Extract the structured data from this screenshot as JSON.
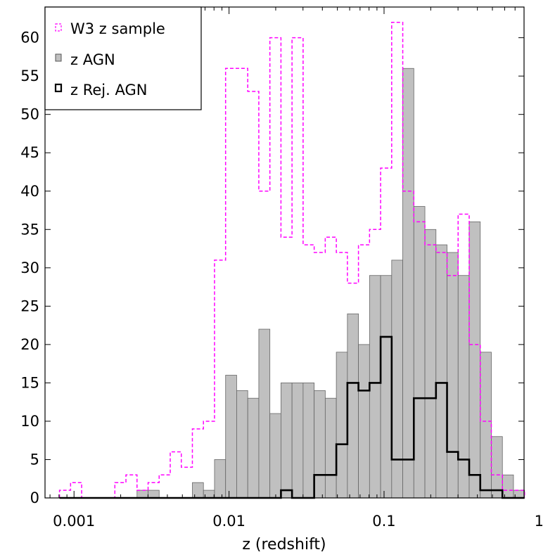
{
  "chart_data": {
    "type": "bar",
    "xlabel": "z (redshift)",
    "ylabel": "",
    "x_scale": "log",
    "xlim": [
      0.00065,
      0.8
    ],
    "ylim": [
      0,
      64
    ],
    "bins_per_decade": 14,
    "first_bin_left": 0.000806,
    "x_ticks": [
      {
        "value": 0.001,
        "label": "0.001"
      },
      {
        "value": 0.01,
        "label": "0.01"
      },
      {
        "value": 0.1,
        "label": "0.1"
      },
      {
        "value": 1,
        "label": "1"
      }
    ],
    "y_ticks": [
      0,
      5,
      10,
      15,
      20,
      25,
      30,
      35,
      40,
      45,
      50,
      55,
      60
    ],
    "legend": {
      "position": "top-left",
      "entries": [
        "W3 z sample",
        "z AGN",
        "z Rej. AGN"
      ]
    },
    "series": [
      {
        "name": "W3 z sample",
        "style": "dashed-step",
        "color": "#ff00ff",
        "values": [
          1,
          2,
          0,
          0,
          0,
          2,
          3,
          1,
          2,
          3,
          6,
          4,
          9,
          10,
          31,
          56,
          56,
          53,
          40,
          60,
          34,
          60,
          33,
          32,
          34,
          32,
          28,
          33,
          35,
          43,
          62,
          40,
          36,
          33,
          32,
          29,
          37,
          20,
          10,
          3,
          1,
          1
        ]
      },
      {
        "name": "z AGN",
        "style": "filled-bar",
        "color": "#c0c0c0",
        "values": [
          0,
          0,
          0,
          0,
          0,
          0,
          0,
          1,
          1,
          0,
          0,
          0,
          2,
          1,
          5,
          16,
          14,
          13,
          22,
          11,
          15,
          15,
          15,
          14,
          13,
          19,
          24,
          20,
          29,
          29,
          31,
          56,
          38,
          35,
          33,
          32,
          29,
          36,
          19,
          8,
          3,
          1
        ]
      },
      {
        "name": "z Rej. AGN",
        "style": "solid-step",
        "color": "#000000",
        "values": [
          0,
          0,
          0,
          0,
          0,
          0,
          0,
          0,
          0,
          0,
          0,
          0,
          0,
          0,
          0,
          0,
          0,
          0,
          0,
          0,
          1,
          0,
          0,
          3,
          3,
          7,
          15,
          14,
          15,
          21,
          5,
          5,
          13,
          13,
          15,
          6,
          5,
          3,
          1,
          1,
          0,
          0
        ]
      }
    ]
  }
}
